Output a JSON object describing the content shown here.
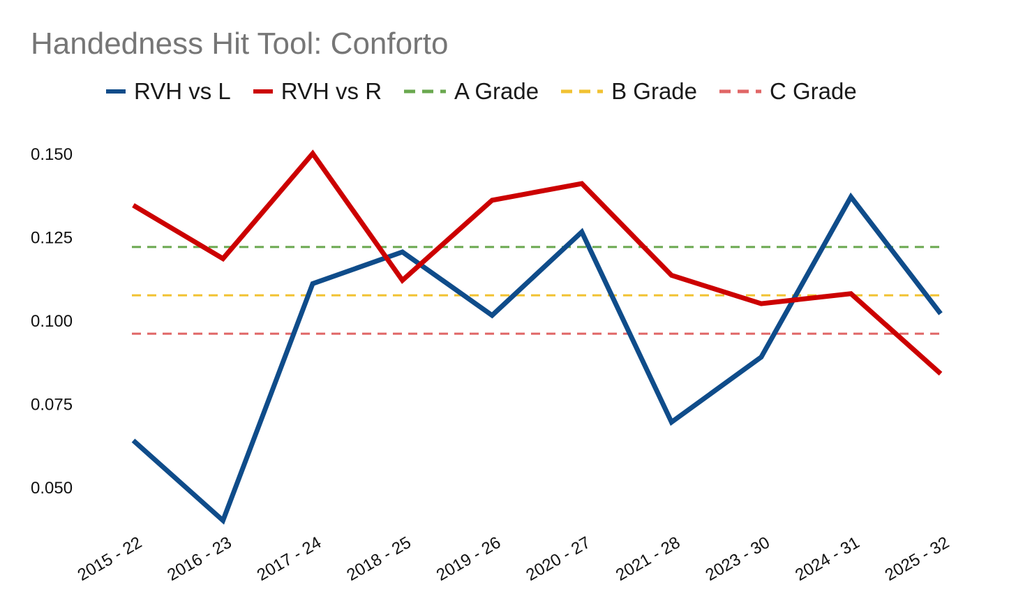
{
  "chart_data": {
    "type": "line",
    "title": "Handedness Hit Tool: Conforto",
    "xlabel": "",
    "ylabel": "",
    "categories": [
      "2015 - 22",
      "2016 - 23",
      "2017 - 24",
      "2018 - 25",
      "2019 - 26",
      "2020 - 27",
      "2021 - 28",
      "2023 - 30",
      "2024 - 31",
      "2025 - 32"
    ],
    "ylim": [
      0.04,
      0.155
    ],
    "yticks": [
      0.05,
      0.075,
      0.1,
      0.125,
      0.15
    ],
    "ytick_labels": [
      "0.050",
      "0.075",
      "0.100",
      "0.125",
      "0.150"
    ],
    "series": [
      {
        "name": "RVH vs L",
        "color": "#0f4c8a",
        "style": "solid",
        "values": [
          0.064,
          0.04,
          0.111,
          0.1205,
          0.1015,
          0.1265,
          0.0695,
          0.089,
          0.137,
          0.102
        ]
      },
      {
        "name": "RVH vs R",
        "color": "#cc0000",
        "style": "solid",
        "values": [
          0.1345,
          0.1185,
          0.15,
          0.112,
          0.136,
          0.141,
          0.1135,
          0.105,
          0.108,
          0.084
        ]
      }
    ],
    "reference_lines": [
      {
        "name": "A Grade",
        "color": "#6aa84f",
        "style": "dashed",
        "value": 0.122
      },
      {
        "name": "B Grade",
        "color": "#f1c232",
        "style": "dashed",
        "value": 0.1075
      },
      {
        "name": "C Grade",
        "color": "#e06666",
        "style": "dashed",
        "value": 0.096
      }
    ],
    "legend_position": "top",
    "grid": false
  }
}
